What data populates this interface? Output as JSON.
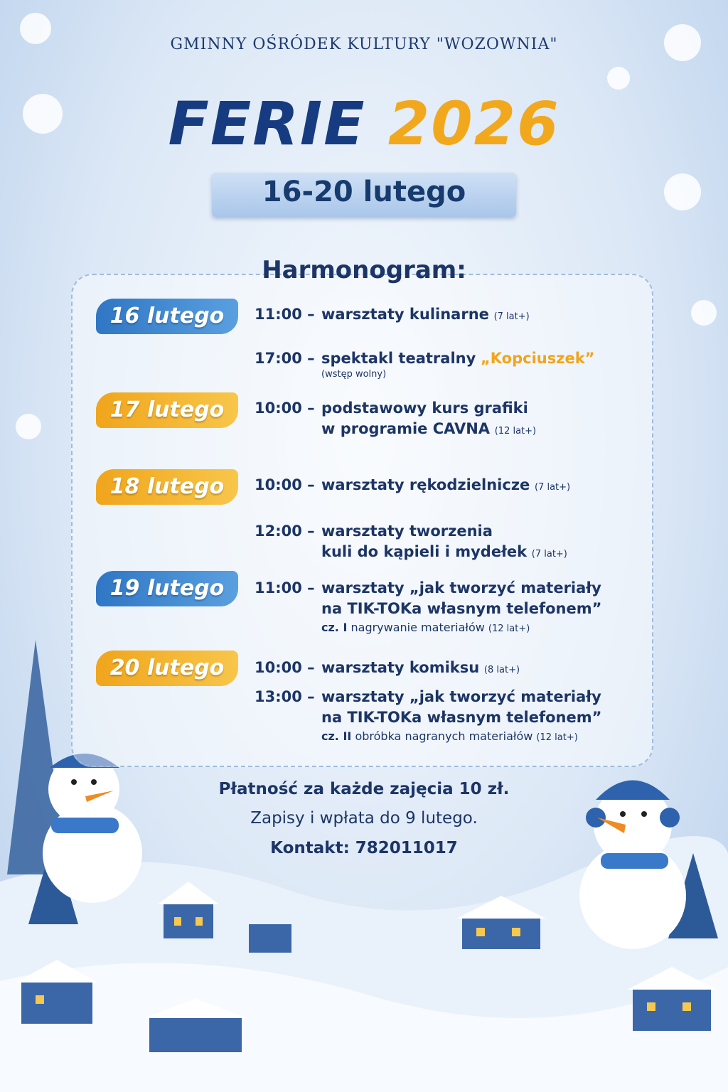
{
  "header": {
    "organizer": "GMINNY OŚRÓDEK KULTURY \"WOZOWNIA\"",
    "title_word": "FERIE",
    "title_year": "2026",
    "dates": "16-20 lutego"
  },
  "schedule": {
    "heading": "Harmonogram:",
    "days": [
      {
        "date": "16 lutego",
        "events": [
          {
            "time": "11:00 –",
            "lines": [
              "warsztaty kulinarne"
            ],
            "age": "(7 lat+)"
          },
          {
            "time": "17:00 –",
            "lines": [
              "spektakl teatralny"
            ],
            "highlight": "„Kopciuszek”",
            "note": "(wstęp wolny)"
          }
        ]
      },
      {
        "date": "17 lutego",
        "events": [
          {
            "time": "10:00 –",
            "lines": [
              "podstawowy kurs grafiki",
              "w programie CAVNA"
            ],
            "age": "(12 lat+)"
          }
        ]
      },
      {
        "date": "18 lutego",
        "events": [
          {
            "time": "10:00 –",
            "lines": [
              "warsztaty rękodzielnicze"
            ],
            "age": "(7 lat+)"
          },
          {
            "time": "12:00 –",
            "lines": [
              "warsztaty tworzenia",
              "kuli do kąpieli i mydełek"
            ],
            "age": "(7 lat+)"
          }
        ]
      },
      {
        "date": "19 lutego",
        "events": [
          {
            "time": "11:00 –",
            "lines": [
              "warsztaty „jak tworzyć materiały",
              "na TIK-TOKa własnym telefonem”"
            ],
            "part": "cz. I",
            "note": "nagrywanie materiałów",
            "age": "(12 lat+)"
          }
        ]
      },
      {
        "date": "20 lutego",
        "events": [
          {
            "time": "10:00 –",
            "lines": [
              "warsztaty komiksu"
            ],
            "age": "(8 lat+)"
          },
          {
            "time": "13:00 –",
            "lines": [
              "warsztaty „jak tworzyć materiały",
              "na TIK-TOKa własnym telefonem”"
            ],
            "part": "cz. II",
            "note": "obróbka nagranych materiałów",
            "age": "(12 lat+)"
          }
        ]
      }
    ]
  },
  "footer": {
    "payment": "Płatność za każde zajęcia 10 zł.",
    "signup": "Zapisy i wpłata do 9 lutego.",
    "contact": "Kontakt: 782011017"
  }
}
